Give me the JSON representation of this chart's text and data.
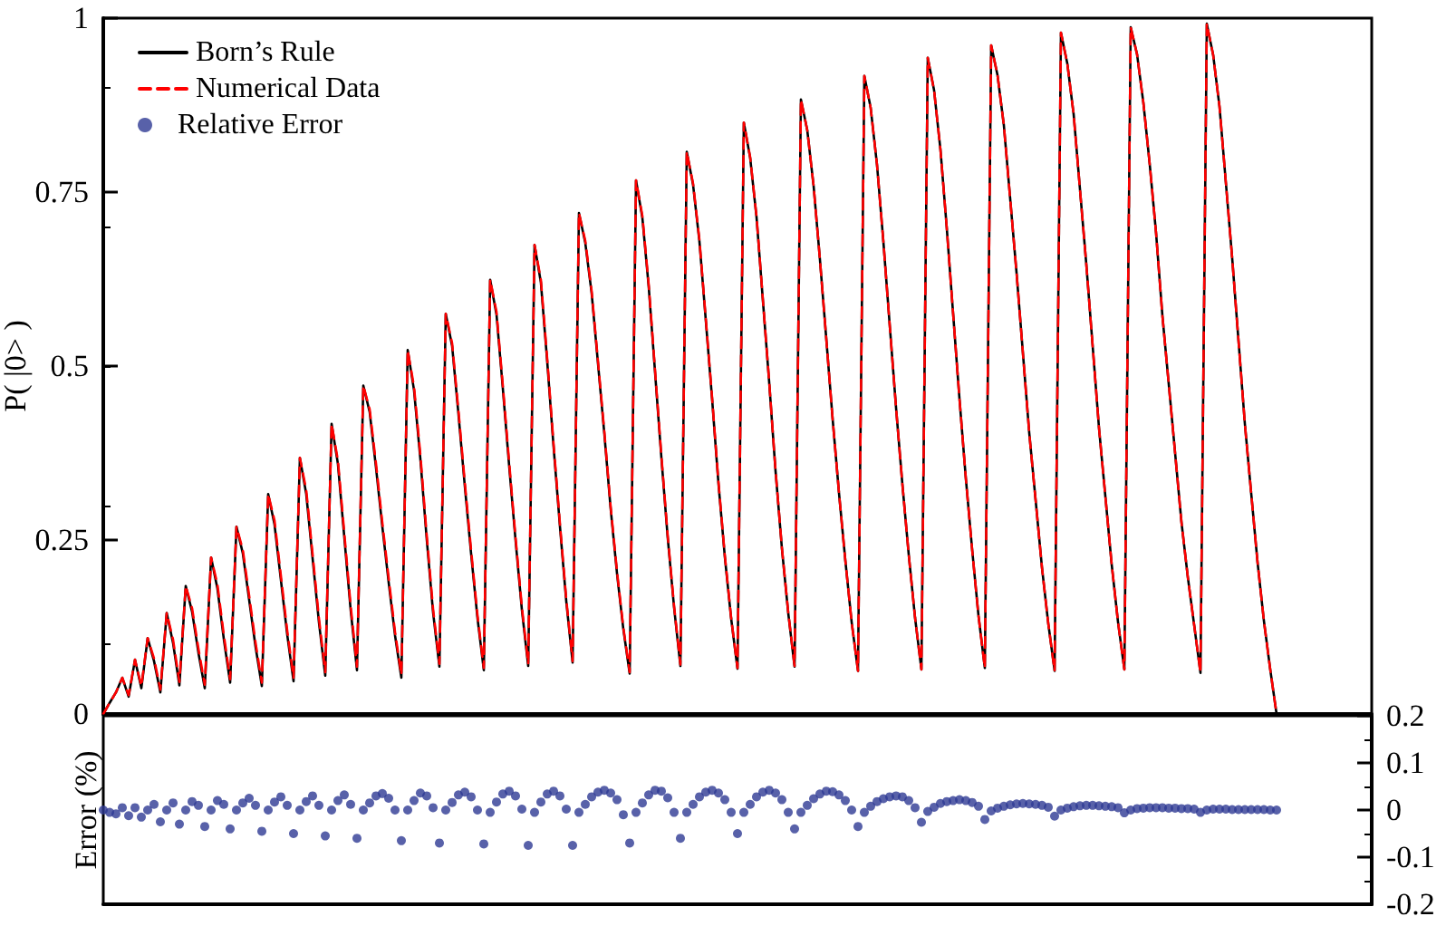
{
  "chart_data": [
    {
      "type": "line",
      "ylabel": "P( |0> )",
      "categories": [
        null,
        null,
        null,
        null,
        null,
        null,
        null,
        null,
        null,
        null,
        null,
        null,
        null,
        null,
        null,
        null,
        null,
        null,
        null,
        null,
        null,
        null,
        null,
        null,
        null,
        null,
        null,
        null,
        null,
        null,
        null,
        null,
        null,
        null,
        null,
        null,
        null,
        null,
        null,
        null,
        null,
        null,
        null,
        null,
        null,
        null,
        null,
        null,
        null,
        null,
        null,
        null,
        null,
        null,
        null,
        null,
        null,
        null,
        null,
        null,
        null,
        null,
        null,
        null,
        null,
        null,
        null,
        null,
        null,
        null,
        null,
        null,
        null,
        null,
        null,
        null,
        null,
        null,
        null,
        null,
        null,
        null,
        null,
        null,
        null,
        null,
        null,
        null,
        null,
        null,
        null,
        null,
        null,
        null,
        null,
        null,
        null,
        null,
        null,
        null,
        null,
        null,
        null,
        null,
        null,
        null,
        null,
        null,
        null,
        null,
        null,
        null,
        null,
        null,
        null,
        null,
        null,
        null,
        null,
        null,
        null,
        null,
        null,
        null,
        null,
        null,
        null,
        null,
        null,
        null,
        null,
        null,
        null,
        null,
        null,
        null,
        null,
        null,
        null,
        null,
        null,
        null,
        null,
        null,
        null,
        null,
        null,
        null,
        null,
        null,
        null,
        null,
        null,
        null,
        null,
        null,
        null,
        null,
        null,
        null,
        null,
        null,
        null,
        null,
        null,
        null,
        null,
        null,
        null,
        null,
        null,
        null,
        null,
        null,
        null,
        null,
        null,
        null,
        null,
        null,
        null,
        null,
        null,
        null,
        null,
        null,
        null,
        null,
        null,
        null,
        null,
        null,
        null,
        null,
        null,
        null,
        null,
        null,
        null,
        null,
        null
      ],
      "ylim": [
        0,
        1
      ],
      "yticks": [
        0,
        0.25,
        0.5,
        0.75,
        1
      ],
      "tick_labels": "y",
      "grid": false,
      "legend": "top left",
      "marker": "none",
      "series": [
        {
          "name": "Born’s Rule",
          "color": "#000000",
          "line_style": "solid",
          "values": [
            0,
            0.016,
            0.031,
            0.052,
            0.025,
            0.078,
            0.037,
            0.109,
            0.076,
            0.031,
            0.145,
            0.102,
            0.041,
            0.184,
            0.147,
            0.088,
            0.037,
            0.225,
            0.18,
            0.108,
            0.045,
            0.269,
            0.231,
            0.164,
            0.097,
            0.04,
            0.316,
            0.272,
            0.193,
            0.114,
            0.047,
            0.368,
            0.316,
            0.224,
            0.132,
            0.055,
            0.417,
            0.359,
            0.254,
            0.15,
            0.063,
            0.472,
            0.434,
            0.354,
            0.269,
            0.189,
            0.113,
            0.052,
            0.523,
            0.465,
            0.366,
            0.251,
            0.146,
            0.068,
            0.575,
            0.529,
            0.431,
            0.328,
            0.23,
            0.138,
            0.063,
            0.624,
            0.574,
            0.468,
            0.356,
            0.25,
            0.15,
            0.069,
            0.674,
            0.62,
            0.506,
            0.384,
            0.27,
            0.162,
            0.074,
            0.72,
            0.677,
            0.605,
            0.504,
            0.403,
            0.295,
            0.202,
            0.122,
            0.058,
            0.767,
            0.713,
            0.614,
            0.491,
            0.368,
            0.253,
            0.153,
            0.069,
            0.808,
            0.76,
            0.679,
            0.566,
            0.452,
            0.331,
            0.226,
            0.137,
            0.065,
            0.85,
            0.799,
            0.714,
            0.595,
            0.476,
            0.349,
            0.238,
            0.145,
            0.068,
            0.883,
            0.839,
            0.759,
            0.653,
            0.539,
            0.424,
            0.318,
            0.221,
            0.132,
            0.062,
            0.917,
            0.871,
            0.789,
            0.679,
            0.559,
            0.44,
            0.33,
            0.229,
            0.138,
            0.064,
            0.943,
            0.896,
            0.811,
            0.698,
            0.575,
            0.453,
            0.339,
            0.236,
            0.141,
            0.066,
            0.961,
            0.918,
            0.846,
            0.74,
            0.634,
            0.519,
            0.404,
            0.308,
            0.211,
            0.13,
            0.062,
            0.979,
            0.935,
            0.862,
            0.754,
            0.646,
            0.529,
            0.411,
            0.313,
            0.215,
            0.132,
            0.064,
            0.987,
            0.948,
            0.878,
            0.79,
            0.691,
            0.572,
            0.474,
            0.375,
            0.276,
            0.197,
            0.128,
            0.059,
            0.992,
            0.947,
            0.873,
            0.764,
            0.655,
            0.536,
            0.417,
            0.317,
            0.218,
            0.134,
            0.064,
            0,
            null,
            null,
            null,
            null,
            null,
            null,
            null,
            null,
            null,
            null,
            null,
            null,
            null,
            null,
            null
          ]
        },
        {
          "name": "Numerical Data",
          "color": "#ff0000",
          "line_style": "dashed",
          "values": [
            0,
            0.016,
            0.031,
            0.052,
            0.027,
            0.078,
            0.04,
            0.109,
            0.08,
            0.035,
            0.145,
            0.107,
            0.046,
            0.184,
            0.152,
            0.094,
            0.042,
            0.225,
            0.186,
            0.114,
            0.05,
            0.269,
            0.236,
            0.17,
            0.103,
            0.045,
            0.316,
            0.278,
            0.199,
            0.12,
            0.052,
            0.368,
            0.322,
            0.23,
            0.138,
            0.06,
            0.417,
            0.364,
            0.26,
            0.156,
            0.068,
            0.472,
            0.438,
            0.36,
            0.275,
            0.195,
            0.118,
            0.056,
            0.523,
            0.47,
            0.372,
            0.257,
            0.151,
            0.072,
            0.575,
            0.533,
            0.436,
            0.333,
            0.235,
            0.142,
            0.066,
            0.624,
            0.578,
            0.472,
            0.361,
            0.254,
            0.154,
            0.072,
            0.674,
            0.624,
            0.51,
            0.388,
            0.274,
            0.165,
            0.076,
            0.72,
            0.68,
            0.608,
            0.507,
            0.406,
            0.298,
            0.205,
            0.124,
            0.06,
            0.767,
            0.716,
            0.617,
            0.494,
            0.371,
            0.256,
            0.155,
            0.071,
            0.808,
            0.762,
            0.681,
            0.568,
            0.454,
            0.333,
            0.228,
            0.138,
            0.066,
            0.85,
            0.8,
            0.715,
            0.596,
            0.477,
            0.35,
            0.239,
            0.146,
            0.069,
            0.883,
            0.839,
            0.759,
            0.653,
            0.539,
            0.424,
            0.318,
            0.221,
            0.132,
            0.062,
            0.917,
            0.871,
            0.789,
            0.679,
            0.559,
            0.44,
            0.33,
            0.229,
            0.138,
            0.064,
            0.943,
            0.896,
            0.811,
            0.698,
            0.575,
            0.453,
            0.339,
            0.236,
            0.141,
            0.066,
            0.961,
            0.918,
            0.846,
            0.74,
            0.634,
            0.519,
            0.404,
            0.308,
            0.211,
            0.13,
            0.062,
            0.979,
            0.935,
            0.862,
            0.754,
            0.646,
            0.529,
            0.411,
            0.313,
            0.215,
            0.132,
            0.064,
            0.987,
            0.948,
            0.878,
            0.79,
            0.691,
            0.572,
            0.474,
            0.375,
            0.276,
            0.197,
            0.128,
            0.059,
            0.992,
            0.947,
            0.873,
            0.764,
            0.655,
            0.536,
            0.417,
            0.317,
            0.218,
            0.134,
            0.064,
            0,
            null,
            null,
            null,
            null,
            null,
            null,
            null,
            null,
            null,
            null,
            null,
            null,
            null,
            null,
            null
          ]
        }
      ]
    },
    {
      "type": "scatter",
      "ylabel": "Error (%)",
      "categories": [
        null,
        null,
        null,
        null,
        null,
        null,
        null,
        null,
        null,
        null,
        null,
        null,
        null,
        null,
        null,
        null,
        null,
        null,
        null,
        null,
        null,
        null,
        null,
        null,
        null,
        null,
        null,
        null,
        null,
        null,
        null,
        null,
        null,
        null,
        null,
        null,
        null,
        null,
        null,
        null,
        null,
        null,
        null,
        null,
        null,
        null,
        null,
        null,
        null,
        null,
        null,
        null,
        null,
        null,
        null,
        null,
        null,
        null,
        null,
        null,
        null,
        null,
        null,
        null,
        null,
        null,
        null,
        null,
        null,
        null,
        null,
        null,
        null,
        null,
        null,
        null,
        null,
        null,
        null,
        null,
        null,
        null,
        null,
        null,
        null,
        null,
        null,
        null,
        null,
        null,
        null,
        null,
        null,
        null,
        null,
        null,
        null,
        null,
        null,
        null,
        null,
        null,
        null,
        null,
        null,
        null,
        null,
        null,
        null,
        null,
        null,
        null,
        null,
        null,
        null,
        null,
        null,
        null,
        null,
        null,
        null,
        null,
        null,
        null,
        null,
        null,
        null,
        null,
        null,
        null,
        null,
        null,
        null,
        null,
        null,
        null,
        null,
        null,
        null,
        null,
        null,
        null,
        null,
        null,
        null,
        null,
        null,
        null,
        null,
        null,
        null,
        null,
        null,
        null,
        null,
        null,
        null,
        null,
        null,
        null,
        null,
        null,
        null,
        null,
        null,
        null,
        null,
        null,
        null,
        null,
        null,
        null,
        null,
        null,
        null,
        null,
        null,
        null,
        null,
        null,
        null,
        null,
        null,
        null,
        null,
        null,
        null,
        null,
        null,
        null,
        null,
        null,
        null,
        null,
        null,
        null,
        null,
        null,
        null,
        null,
        null
      ],
      "ylim": [
        -0.2,
        0.2
      ],
      "yticks": [
        -0.2,
        -0.1,
        0,
        0.1,
        0.2
      ],
      "tick_labels": "y",
      "grid": false,
      "legend": "top left",
      "marker": "circle",
      "series": [
        {
          "name": "Relative Error",
          "color": "#2e3a94",
          "values": [
            0,
            -0.005,
            -0.008,
            0.005,
            -0.012,
            0.005,
            -0.015,
            0,
            0.012,
            -0.025,
            0,
            0.015,
            -0.03,
            0,
            0.018,
            0.01,
            -0.035,
            0,
            0.02,
            0.012,
            -0.04,
            0,
            0.015,
            0.025,
            0.01,
            -0.045,
            0,
            0.017,
            0.028,
            0.01,
            -0.05,
            0,
            0.018,
            0.03,
            0.01,
            -0.055,
            0,
            0.02,
            0.032,
            0.012,
            -0.06,
            0,
            0.015,
            0.03,
            0.035,
            0.025,
            0,
            -0.065,
            0,
            0.02,
            0.036,
            0.03,
            0.005,
            -0.07,
            0,
            0.016,
            0.032,
            0.038,
            0.028,
            0,
            -0.072,
            -0.005,
            0.017,
            0.034,
            0.04,
            0.03,
            0.002,
            -0.075,
            -0.005,
            0.017,
            0.034,
            0.04,
            0.03,
            0.002,
            -0.075,
            -0.005,
            0.012,
            0.028,
            0.038,
            0.042,
            0.036,
            0.022,
            -0.01,
            -0.07,
            -0.005,
            0.015,
            0.032,
            0.042,
            0.04,
            0.026,
            -0.005,
            -0.06,
            -0.005,
            0.012,
            0.028,
            0.038,
            0.042,
            0.036,
            0.022,
            -0.005,
            -0.05,
            -0.005,
            0.012,
            0.028,
            0.038,
            0.042,
            0.036,
            0.022,
            -0.005,
            -0.04,
            -0.005,
            0.01,
            0.024,
            0.034,
            0.04,
            0.039,
            0.032,
            0.02,
            0,
            -0.035,
            -0.005,
            0.008,
            0.018,
            0.024,
            0.028,
            0.03,
            0.028,
            0.02,
            0.005,
            -0.026,
            -0.003,
            0.006,
            0.014,
            0.018,
            0.02,
            0.022,
            0.02,
            0.016,
            0.008,
            -0.02,
            -0.002,
            0.004,
            0.008,
            0.011,
            0.013,
            0.014,
            0.013,
            0.012,
            0.01,
            0.006,
            -0.013,
            0,
            0.004,
            0.007,
            0.009,
            0.01,
            0.01,
            0.009,
            0.008,
            0.007,
            0.005,
            -0.006,
            0,
            0.003,
            0.004,
            0.005,
            0.005,
            0.005,
            0.004,
            0.004,
            0.003,
            0.003,
            0.002,
            -0.005,
            0,
            0.002,
            0.002,
            0.002,
            0.001,
            0.001,
            0.001,
            0.001,
            0.001,
            0.001,
            0,
            0,
            null,
            null,
            null,
            null,
            null,
            null,
            null,
            null,
            null,
            null,
            null,
            null,
            null,
            null,
            null
          ]
        }
      ]
    }
  ]
}
